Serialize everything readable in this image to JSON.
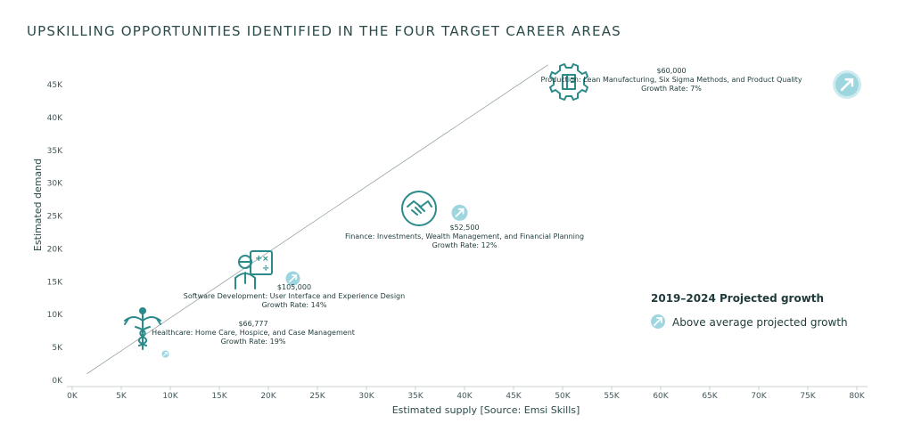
{
  "chart_data": {
    "type": "scatter",
    "title": "UPSKILLING OPPORTUNITIES IDENTIFIED IN THE FOUR TARGET CAREER AREAS",
    "xlabel": "Estimated supply [Source: Emsi Skills]",
    "ylabel": "Estimated demand",
    "xlim": [
      0,
      80000
    ],
    "ylim": [
      0,
      45000
    ],
    "x_ticks": [
      "0K",
      "5K",
      "10K",
      "15K",
      "20K",
      "25K",
      "30K",
      "35K",
      "40K",
      "45K",
      "50K",
      "55K",
      "60K",
      "65K",
      "70K",
      "75K",
      "80K"
    ],
    "y_ticks": [
      "0K",
      "5K",
      "10K",
      "15K",
      "20K",
      "25K",
      "30K",
      "35K",
      "40K",
      "45K"
    ],
    "reference_line": {
      "from": [
        1500,
        1000
      ],
      "to": [
        48500,
        48000
      ]
    },
    "points": [
      {
        "category": "Healthcare: Home Care, Hospice, and Case Management",
        "salary": "$66,777",
        "growth": "Growth Rate: 19%",
        "icon": "caduceus-icon",
        "x": 9500,
        "y": 4000
      },
      {
        "category": "Software Development: User Interface and Experience Design",
        "salary": "$105,000",
        "growth": "Growth Rate: 14%",
        "icon": "developer-icon",
        "x": 22500,
        "y": 15500
      },
      {
        "category": "Finance: Investments, Wealth Management, and Financial Planning",
        "salary": "$52,500",
        "growth": "Growth Rate: 12%",
        "icon": "handshake-icon",
        "x": 39500,
        "y": 25500
      },
      {
        "category": "Production: Lean Manufacturing, Six Sigma Methods, and Product Quality",
        "salary": "$60,000",
        "growth": "Growth Rate: 7%",
        "icon": "gear-icon",
        "x": 79000,
        "y": 45000
      }
    ],
    "legend": {
      "title": "2019–2024 Projected growth",
      "entry": "Above average projected growth",
      "placement": "right"
    },
    "colors": {
      "accent": "#2b8a8a",
      "marker": "#9ed6df",
      "marker_light": "#cdebef"
    }
  }
}
